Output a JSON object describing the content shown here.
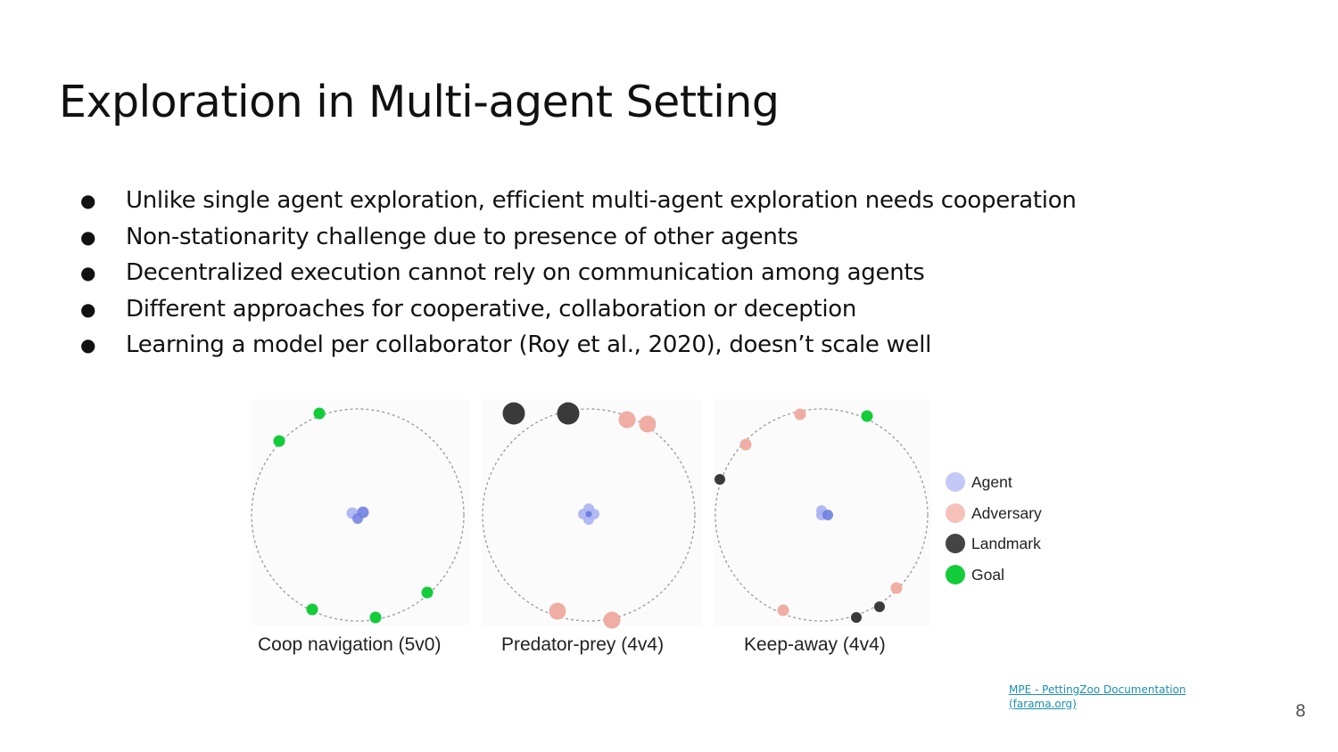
{
  "slide": {
    "title": "Exploration in Multi-agent Setting",
    "bullets": [
      "Unlike single agent exploration, efficient multi-agent exploration needs cooperation",
      "Non-stationarity challenge due to presence of other agents",
      "Decentralized execution cannot rely on communication among agents",
      "Different approaches for cooperative, collaboration or deception",
      "Learning a model per collaborator (Roy et al., 2020), doesn’t scale well"
    ],
    "bullet_glyph": "●",
    "page_number": "8"
  },
  "figure": {
    "panels": [
      {
        "label": "Coop navigation (5v0)"
      },
      {
        "label": "Predator-prey (4v4)"
      },
      {
        "label": "Keep-away (4v4)"
      }
    ],
    "legend": [
      {
        "label": "Agent",
        "color": "#c3c9f7"
      },
      {
        "label": "Adversary",
        "color": "#f6c1b9"
      },
      {
        "label": "Landmark",
        "color": "#444444"
      },
      {
        "label": "Goal",
        "color": "#13cc3a"
      }
    ],
    "colors": {
      "agent": "#6f7fe0",
      "agent_light": "#aab3f2",
      "adversary": "#f0ada3",
      "landmark": "#3a3a3a",
      "goal": "#12cc3a",
      "arena": "#9a9a9a"
    }
  },
  "source": {
    "link_line1": "MPE - PettingZoo Documentation",
    "link_line2": "(farama.org)"
  }
}
